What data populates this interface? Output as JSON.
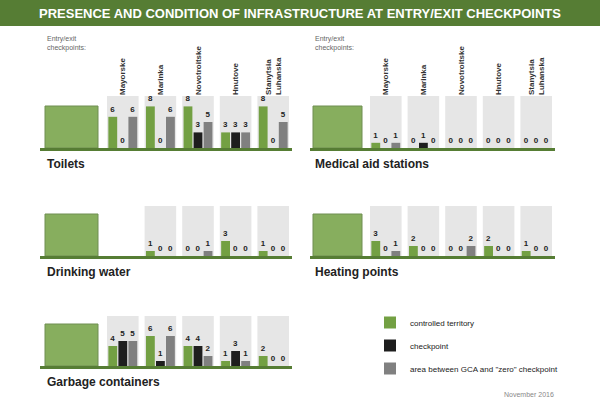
{
  "title": "PRESENCE AND CONDITION OF INFRASTRUCTURE AT ENTRY/EXIT CHECKPOINTS",
  "date": "November 2016",
  "chart_data": [
    {
      "type": "bar",
      "title": "Toilets",
      "xlabel": "Entry/exit checkpoints:",
      "categories": [
        "Mayorske",
        "Marinka",
        "Novotroitske",
        "Hnutove",
        "Stanytsia Luhanska"
      ],
      "series": [
        {
          "name": "controlled territory",
          "color": "#73a043",
          "values": [
            6,
            8,
            8,
            3,
            8
          ]
        },
        {
          "name": "checkpoint",
          "color": "#1e1e1e",
          "values": [
            0,
            0,
            3,
            3,
            0
          ]
        },
        {
          "name": "area between GCA and \"zero\" checkpoint",
          "color": "#808080",
          "values": [
            6,
            6,
            5,
            3,
            5
          ]
        }
      ],
      "ylim": [
        0,
        10
      ],
      "yticks": [],
      "data_labels": true,
      "tick_labels": "x"
    },
    {
      "type": "bar",
      "title": "Medical aid stations",
      "xlabel": "Entry/exit checkpoints:",
      "categories": [
        "Mayorske",
        "Marinka",
        "Novotroitske",
        "Hnutove",
        "Stanytsia Luhanska"
      ],
      "series": [
        {
          "name": "controlled territory",
          "color": "#73a043",
          "values": [
            1,
            0,
            0,
            0,
            0
          ]
        },
        {
          "name": "checkpoint",
          "color": "#1e1e1e",
          "values": [
            0,
            1,
            0,
            0,
            0
          ]
        },
        {
          "name": "area between GCA and \"zero\" checkpoint",
          "color": "#808080",
          "values": [
            1,
            0,
            0,
            0,
            0
          ]
        }
      ],
      "ylim": [
        0,
        10
      ],
      "yticks": [],
      "data_labels": true,
      "tick_labels": "x"
    },
    {
      "type": "bar",
      "title": "Drinking water",
      "categories": [
        "Mayorske",
        "Marinka",
        "Novotroitske",
        "Hnutove",
        "Stanytsia Luhanska"
      ],
      "series": [
        {
          "name": "controlled territory",
          "color": "#73a043",
          "values": [
            null,
            1,
            0,
            3,
            1
          ]
        },
        {
          "name": "checkpoint",
          "color": "#1e1e1e",
          "values": [
            null,
            0,
            0,
            0,
            0
          ]
        },
        {
          "name": "area between GCA and \"zero\" checkpoint",
          "color": "#808080",
          "values": [
            null,
            0,
            1,
            0,
            0
          ]
        }
      ],
      "ylim": [
        0,
        10
      ],
      "yticks": [],
      "data_labels": true,
      "tick_labels": false
    },
    {
      "type": "bar",
      "title": "Heating points",
      "categories": [
        "Mayorske",
        "Marinka",
        "Novotroitske",
        "Hnutove",
        "Stanytsia Luhanska"
      ],
      "series": [
        {
          "name": "controlled territory",
          "color": "#73a043",
          "values": [
            3,
            2,
            0,
            2,
            1
          ]
        },
        {
          "name": "checkpoint",
          "color": "#1e1e1e",
          "values": [
            0,
            0,
            0,
            0,
            0
          ]
        },
        {
          "name": "area between GCA and \"zero\" checkpoint",
          "color": "#808080",
          "values": [
            1,
            0,
            2,
            0,
            0
          ]
        }
      ],
      "ylim": [
        0,
        10
      ],
      "yticks": [],
      "data_labels": true,
      "tick_labels": false
    },
    {
      "type": "bar",
      "title": "Garbage containers",
      "categories": [
        "Mayorske",
        "Marinka",
        "Novotroitske",
        "Hnutove",
        "Stanytsia Luhanska"
      ],
      "series": [
        {
          "name": "controlled territory",
          "color": "#73a043",
          "values": [
            4,
            6,
            4,
            1,
            2
          ]
        },
        {
          "name": "checkpoint",
          "color": "#1e1e1e",
          "values": [
            5,
            1,
            4,
            3,
            0
          ]
        },
        {
          "name": "area between GCA and \"zero\" checkpoint",
          "color": "#808080",
          "values": [
            5,
            6,
            2,
            1,
            0
          ]
        }
      ],
      "ylim": [
        0,
        10
      ],
      "yticks": [],
      "data_labels": true,
      "tick_labels": false
    }
  ]
}
